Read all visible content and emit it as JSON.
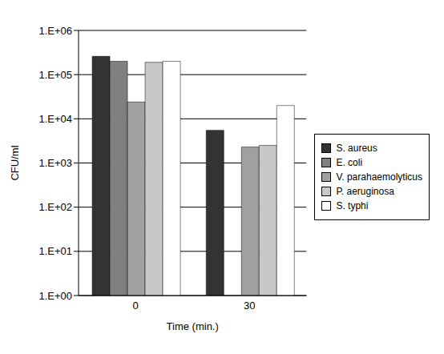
{
  "chart_data": {
    "type": "bar",
    "x_label": "Time (min.)",
    "y_label": "CFU/ml",
    "categories": [
      "0",
      "30"
    ],
    "series": [
      {
        "name": "S. aureus",
        "color": "#333333",
        "values": [
          260000,
          5500
        ]
      },
      {
        "name": "E. coli",
        "color": "#7f7f7f",
        "values": [
          200000,
          null
        ]
      },
      {
        "name": "V. parahaemolyticus",
        "color": "#a0a0a0",
        "values": [
          24000,
          2300
        ]
      },
      {
        "name": "P. aeruginosa",
        "color": "#c8c8c8",
        "values": [
          190000,
          2500
        ]
      },
      {
        "name": "S. typhi",
        "color": "#ffffff",
        "values": [
          200000,
          20000
        ]
      }
    ],
    "log": "y",
    "ylim": [
      1,
      1000000
    ],
    "yticks": [
      {
        "value": 1,
        "label": "1.E+00"
      },
      {
        "value": 10,
        "label": "1.E+01"
      },
      {
        "value": 100,
        "label": "1.E+02"
      },
      {
        "value": 1000,
        "label": "1.E+03"
      },
      {
        "value": 10000,
        "label": "1.E+04"
      },
      {
        "value": 100000,
        "label": "1.E+05"
      },
      {
        "value": 1000000,
        "label": "1.E+06"
      }
    ],
    "grid": true,
    "legend": "right"
  }
}
